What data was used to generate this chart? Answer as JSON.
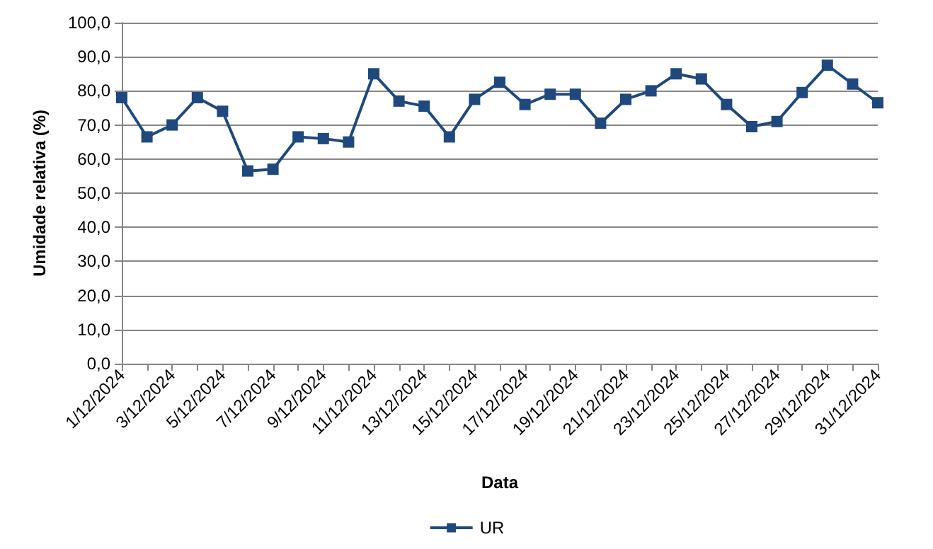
{
  "chart_data": {
    "type": "line",
    "xlabel": "Data",
    "ylabel": "Umidade relativa (%)",
    "categories": [
      "1/12/2024",
      null,
      "3/12/2024",
      null,
      "5/12/2024",
      null,
      "7/12/2024",
      null,
      "9/12/2024",
      null,
      "11/12/2024",
      null,
      "13/12/2024",
      null,
      "15/12/2024",
      null,
      "17/12/2024",
      null,
      "19/12/2024",
      null,
      "21/12/2024",
      null,
      "23/12/2024",
      null,
      "25/12/2024",
      null,
      "27/12/2024",
      null,
      "29/12/2024",
      null,
      "31/12/2024"
    ],
    "series": [
      {
        "name": "UR",
        "color": "#1f497d",
        "values": [
          78,
          66.5,
          70,
          78,
          74,
          56.5,
          57,
          66.5,
          66,
          65,
          85,
          77,
          75.5,
          66.5,
          77.5,
          82.5,
          76,
          79,
          79,
          70.5,
          77.5,
          80,
          85,
          83.5,
          76,
          69.5,
          71,
          79.5,
          87.5,
          82,
          76.5
        ]
      }
    ],
    "ylim": [
      0,
      100
    ],
    "yticks": [
      {
        "value": 0,
        "label": "0,0"
      },
      {
        "value": 10,
        "label": "10,0"
      },
      {
        "value": 20,
        "label": "20,0"
      },
      {
        "value": 30,
        "label": "30,0"
      },
      {
        "value": 40,
        "label": "40,0"
      },
      {
        "value": 50,
        "label": "50,0"
      },
      {
        "value": 60,
        "label": "60,0"
      },
      {
        "value": 70,
        "label": "70,0"
      },
      {
        "value": 80,
        "label": "80,0"
      },
      {
        "value": 90,
        "label": "90,0"
      },
      {
        "value": 100,
        "label": "100,0"
      }
    ],
    "grid": "y",
    "legend": "bottom",
    "marker": "square",
    "line_style": "solid"
  }
}
